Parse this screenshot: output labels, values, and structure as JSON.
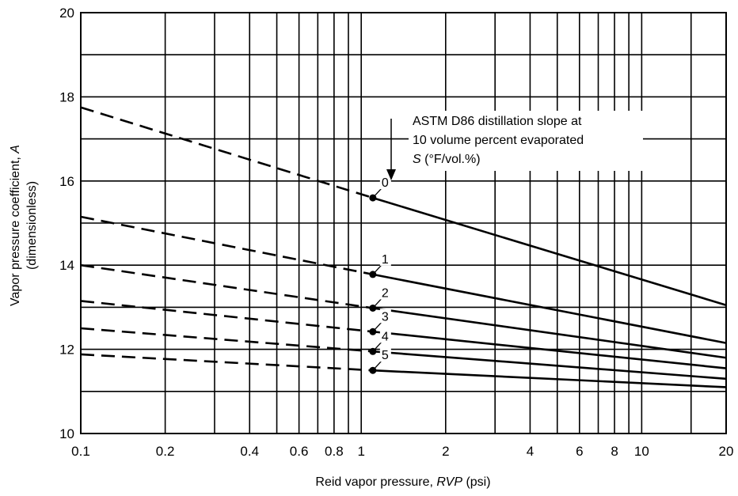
{
  "chart_data": {
    "type": "line",
    "x_scale": "log",
    "xlabel": {
      "prefix": "Reid vapor pressure, ",
      "var": "RVP",
      "suffix": " (psi)"
    },
    "ylabel": {
      "line1_prefix": "Vapor pressure coefficient, ",
      "line1_var": "A",
      "line2": "(dimensionless)"
    },
    "xlim": [
      0.1,
      20
    ],
    "ylim": [
      10,
      20
    ],
    "x_ticks": [
      {
        "value": 0.1,
        "label": "0.1"
      },
      {
        "value": 0.2,
        "label": "0.2"
      },
      {
        "value": 0.4,
        "label": "0.4"
      },
      {
        "value": 0.6,
        "label": "0.6"
      },
      {
        "value": 0.8,
        "label": "0.8"
      },
      {
        "value": 1,
        "label": "1"
      },
      {
        "value": 2,
        "label": "2"
      },
      {
        "value": 4,
        "label": "4"
      },
      {
        "value": 6,
        "label": "6"
      },
      {
        "value": 8,
        "label": "8"
      },
      {
        "value": 10,
        "label": "10"
      },
      {
        "value": 20,
        "label": "20"
      }
    ],
    "x_grid": [
      0.1,
      0.2,
      0.3,
      0.4,
      0.5,
      0.6,
      0.7,
      0.8,
      0.9,
      1,
      2,
      3,
      4,
      5,
      6,
      7,
      8,
      9,
      10,
      15,
      20
    ],
    "y_ticks": [
      {
        "value": 10,
        "label": "10"
      },
      {
        "value": 12,
        "label": "12"
      },
      {
        "value": 14,
        "label": "14"
      },
      {
        "value": 16,
        "label": "16"
      },
      {
        "value": 18,
        "label": "18"
      },
      {
        "value": 20,
        "label": "20"
      }
    ],
    "y_grid": [
      10,
      11,
      12,
      13,
      14,
      15,
      16,
      17,
      18,
      19,
      20
    ],
    "grid": true,
    "annotation": {
      "line1": "ASTM D86 distillation slope at",
      "line2": "10 volume percent evaporated",
      "line3_var": "S",
      "line3_rest": " (°F/vol.%)"
    },
    "series": [
      {
        "label": "0",
        "marker_x": 1.1,
        "dashed": [
          [
            0.1,
            17.75
          ],
          [
            1.1,
            15.6
          ]
        ],
        "solid": [
          [
            1.1,
            15.6
          ],
          [
            20,
            13.05
          ]
        ]
      },
      {
        "label": "1",
        "marker_x": 1.1,
        "dashed": [
          [
            0.1,
            15.15
          ],
          [
            1.1,
            13.78
          ]
        ],
        "solid": [
          [
            1.1,
            13.78
          ],
          [
            20,
            12.15
          ]
        ]
      },
      {
        "label": "2",
        "marker_x": 1.1,
        "dashed": [
          [
            0.1,
            14.0
          ],
          [
            1.1,
            12.98
          ]
        ],
        "solid": [
          [
            1.1,
            12.98
          ],
          [
            20,
            11.8
          ]
        ]
      },
      {
        "label": "3",
        "marker_x": 1.1,
        "dashed": [
          [
            0.1,
            13.15
          ],
          [
            1.1,
            12.42
          ]
        ],
        "solid": [
          [
            1.1,
            12.42
          ],
          [
            20,
            11.55
          ]
        ]
      },
      {
        "label": "4",
        "marker_x": 1.1,
        "dashed": [
          [
            0.1,
            12.5
          ],
          [
            1.1,
            11.95
          ]
        ],
        "solid": [
          [
            1.1,
            11.95
          ],
          [
            20,
            11.3
          ]
        ]
      },
      {
        "label": "5",
        "marker_x": 1.1,
        "dashed": [
          [
            0.1,
            11.88
          ],
          [
            1.1,
            11.5
          ]
        ],
        "solid": [
          [
            1.1,
            11.5
          ],
          [
            20,
            11.1
          ]
        ]
      }
    ]
  }
}
